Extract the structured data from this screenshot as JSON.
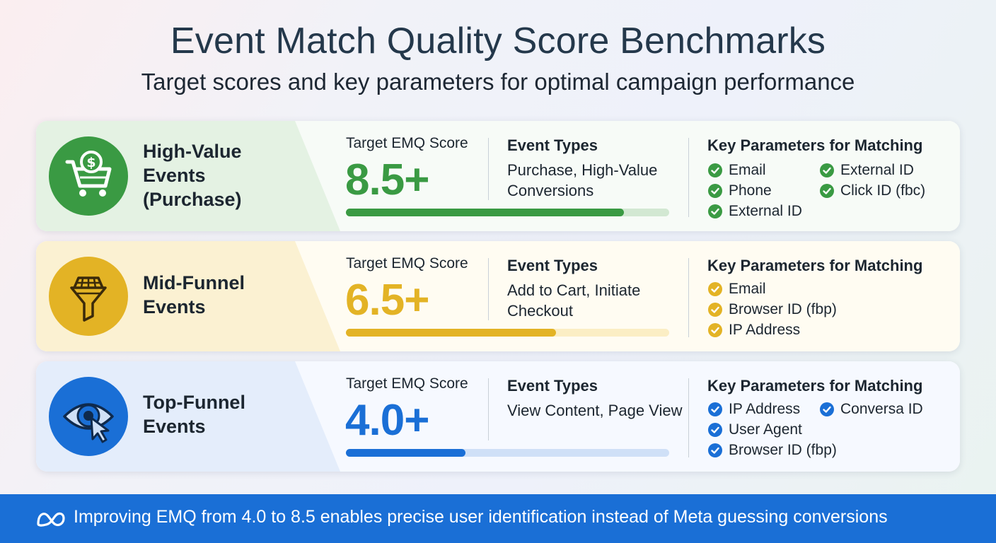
{
  "header": {
    "title": "Event Match Quality Score Benchmarks",
    "subtitle": "Target scores and key parameters for optimal campaign performance"
  },
  "cards": [
    {
      "category": "High-Value\nEvents\n(Purchase)",
      "icon": "shopping-cart-dollar-icon",
      "color": "#3a9a43",
      "score_label": "Target EMQ Score",
      "score": "8.5+",
      "score_value": 8.5,
      "bar_fill_fraction": 0.86,
      "event_types_heading": "Event Types",
      "event_types": "Purchase, High-Value Conversions",
      "key_params_heading": "Key Parameters for Matching",
      "key_params": [
        "Email",
        "Phone",
        "External ID",
        "External ID",
        "Click ID (fbc)"
      ]
    },
    {
      "category": "Mid-Funnel\nEvents",
      "icon": "basket-funnel-icon",
      "color": "#e3b325",
      "score_label": "Target EMQ Score",
      "score": "6.5+",
      "score_value": 6.5,
      "bar_fill_fraction": 0.65,
      "event_types_heading": "Event Types",
      "event_types": "Add to Cart, Initiate Checkout",
      "key_params_heading": "Key Parameters for Matching",
      "key_params": [
        "Email",
        "Browser ID (fbp)",
        "IP Address"
      ]
    },
    {
      "category": "Top-Funnel\nEvents",
      "icon": "eye-cursor-icon",
      "color": "#1a6fd6",
      "score_label": "Target EMQ Score",
      "score": "4.0+",
      "score_value": 4.0,
      "bar_fill_fraction": 0.37,
      "event_types_heading": "Event Types",
      "event_types": "View Content, Page View",
      "key_params_heading": "Key Parameters for Matching",
      "key_params": [
        "IP Address",
        "User Agent",
        "Browser ID (fbp)",
        "Conversa ID"
      ]
    }
  ],
  "footer": {
    "icon": "meta-logo-icon",
    "text": "Improving EMQ from 4.0 to 8.5 enables precise user identification instead of Meta guessing conversions"
  }
}
